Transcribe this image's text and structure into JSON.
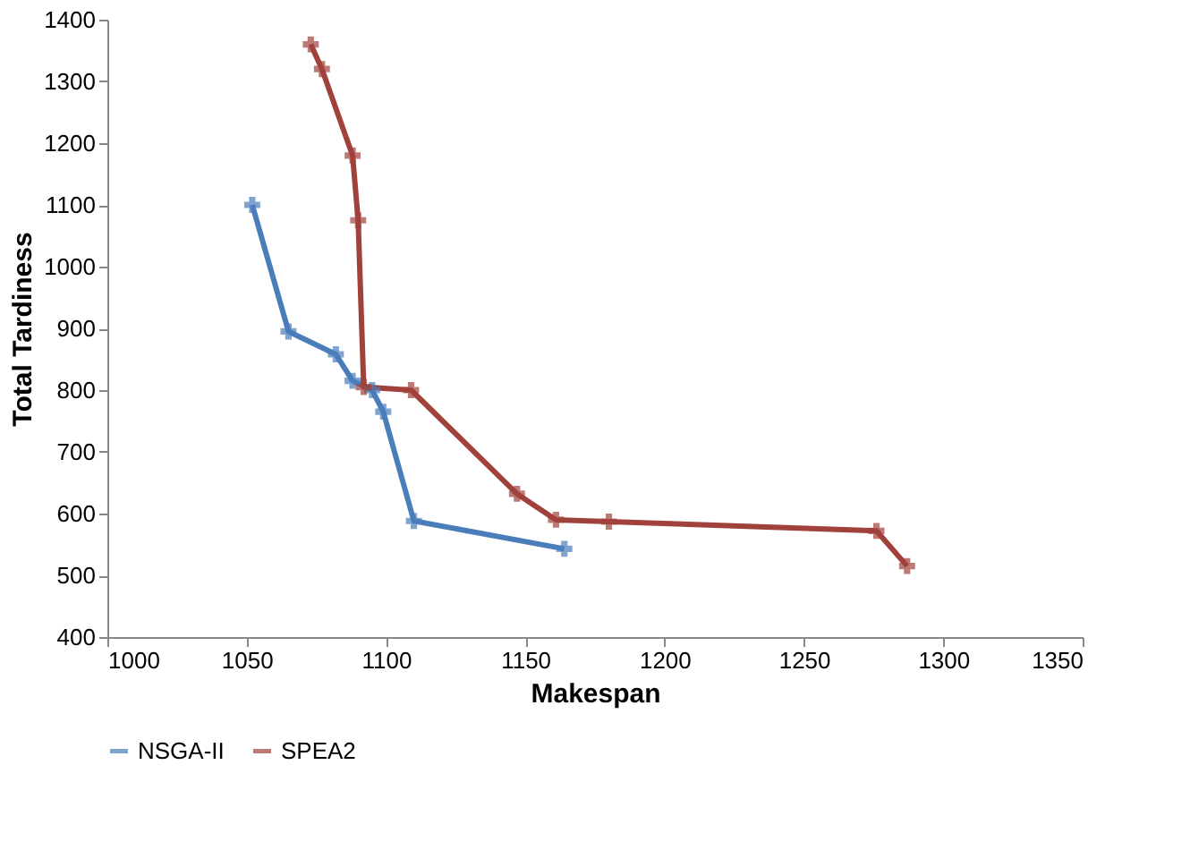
{
  "chart_data": {
    "type": "line",
    "xlabel": "Makespan",
    "ylabel": "Total Tardiness",
    "xlim": [
      1000,
      1350
    ],
    "xticks": [
      1000,
      1050,
      1100,
      1150,
      1200,
      1250,
      1300,
      1350
    ],
    "ylim": [
      400,
      1400
    ],
    "yticks": [
      400,
      500,
      600,
      700,
      800,
      900,
      1000,
      1100,
      1200,
      1300,
      1400
    ],
    "grid": false,
    "legend": "bottom",
    "marker": "cross",
    "line_style": "solid",
    "series": [
      {
        "name": "NSGA-II",
        "color": "#4a7ebb",
        "x": [
          1052,
          1065,
          1082,
          1088,
          1095,
          1099,
          1110,
          1164
        ],
        "values": [
          1100,
          895,
          858,
          815,
          800,
          765,
          588,
          543
        ]
      },
      {
        "name": "SPEA2",
        "color": "#a0413c",
        "x": [
          1073,
          1077,
          1088,
          1090,
          1092,
          1109,
          1147,
          1161,
          1180,
          1276,
          1287
        ],
        "values": [
          1360,
          1320,
          1180,
          1075,
          805,
          800,
          632,
          590,
          587,
          572,
          515
        ]
      }
    ]
  }
}
